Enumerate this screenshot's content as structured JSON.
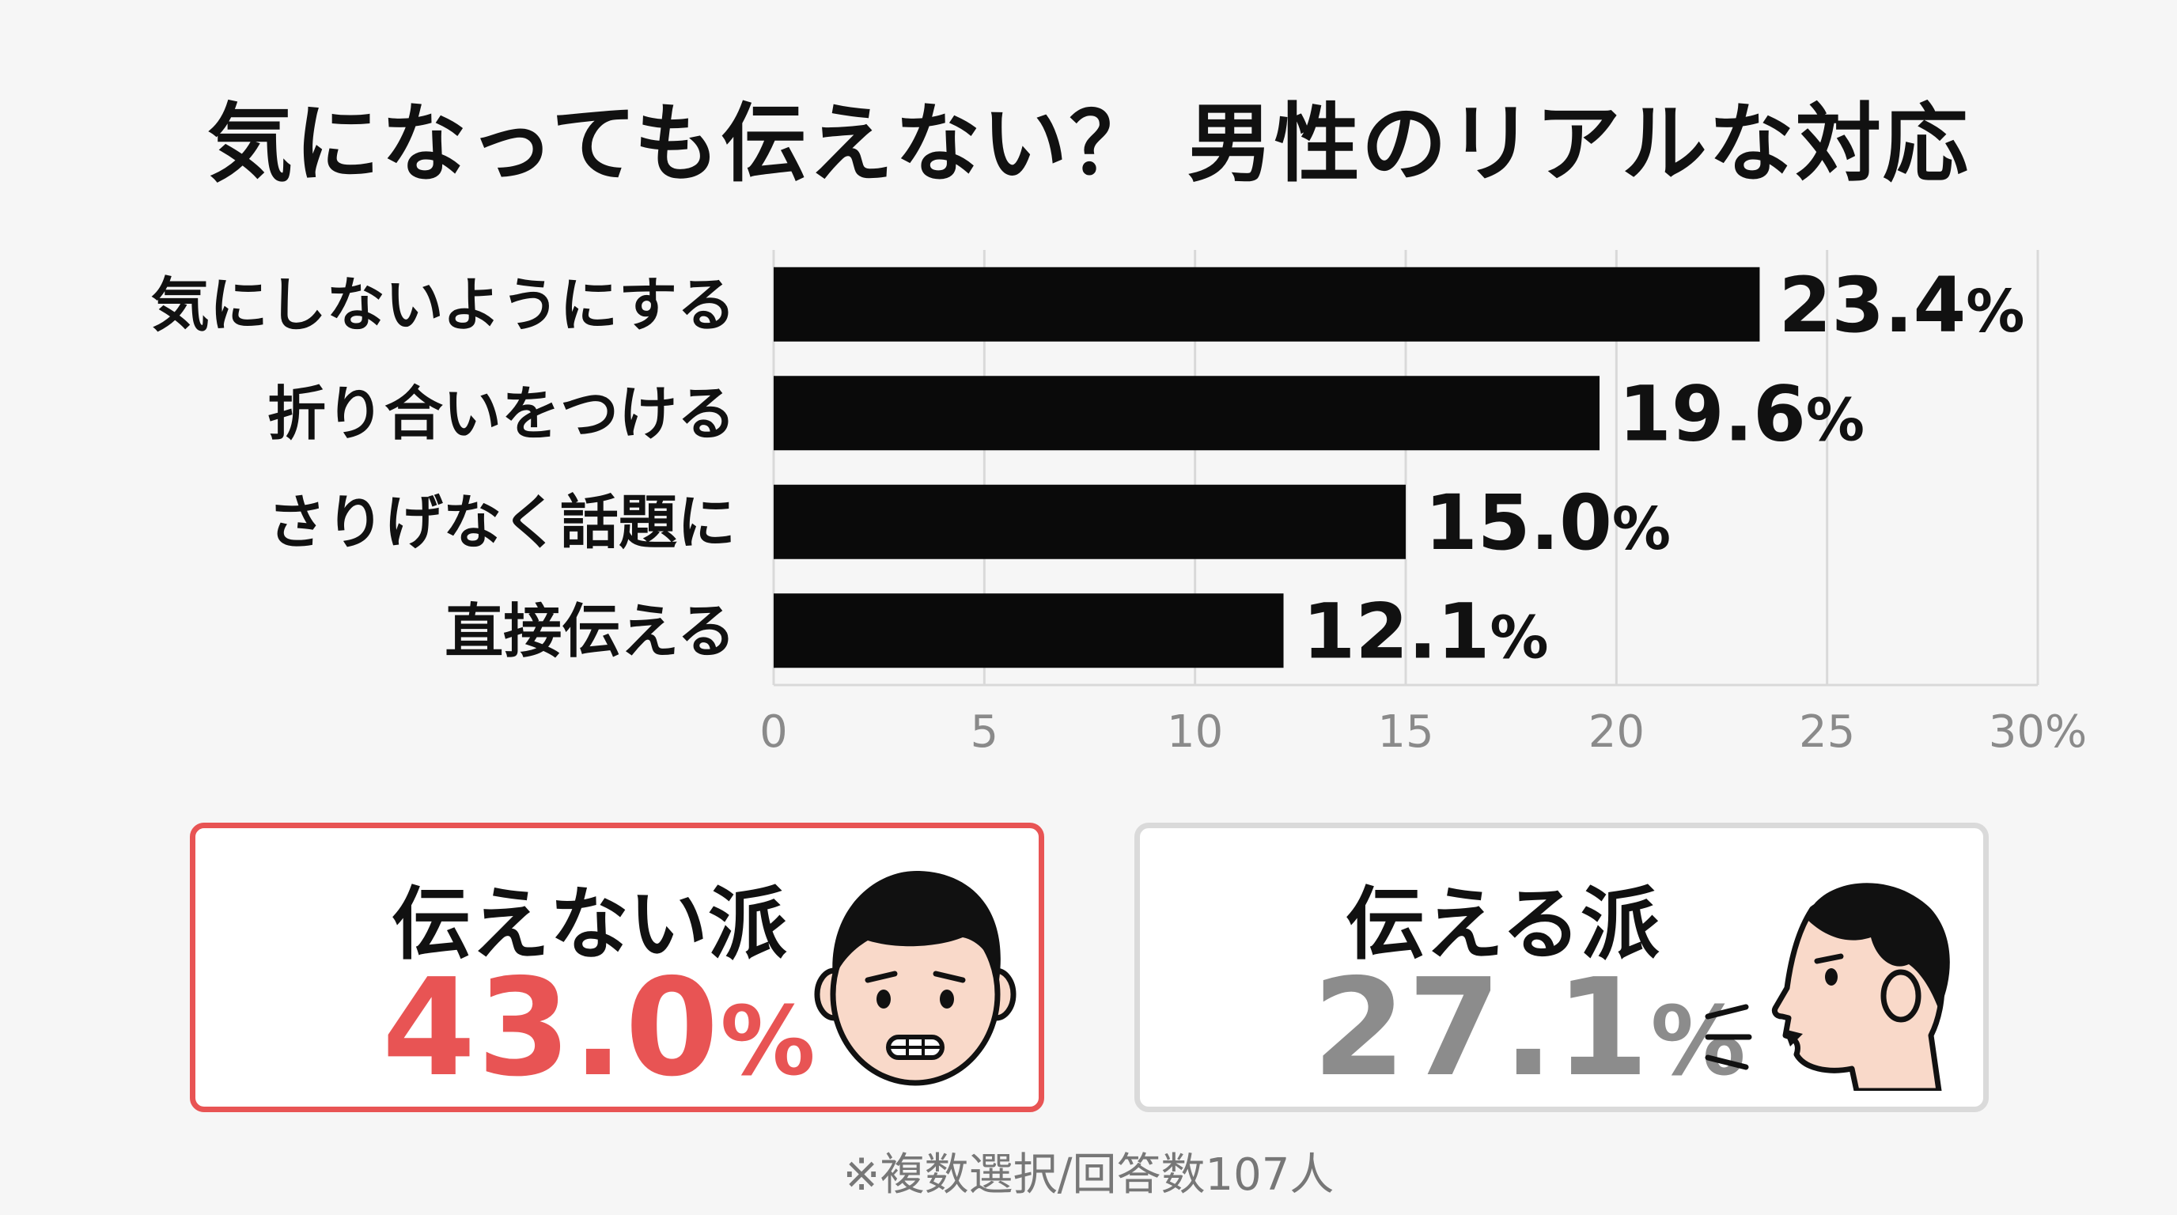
{
  "title": "気になっても伝えない？ 男性のリアルな対応",
  "chart_data": {
    "type": "bar",
    "orientation": "horizontal",
    "categories": [
      "気にしないようにする",
      "折り合いをつける",
      "さりげなく話題に",
      "直接伝える"
    ],
    "values": [
      23.4,
      19.6,
      15.0,
      12.1
    ],
    "value_labels": [
      "23.4",
      "19.6",
      "15.0",
      "12.1"
    ],
    "value_suffix": "%",
    "xlim": [
      0,
      30
    ],
    "xticks": [
      "0",
      "5",
      "10",
      "15",
      "20",
      "25",
      "30%"
    ],
    "grid": true,
    "bar_color": "#0a0a0a",
    "grid_color": "#d9d9d9",
    "tick_color": "#8a8a8a"
  },
  "summary": {
    "not_tell": {
      "label": "伝えない派",
      "value": "43.0",
      "unit": "%",
      "color": "#e85454",
      "icon": "frowning-man-face-icon"
    },
    "tell": {
      "label": "伝える派",
      "value": "27.1",
      "unit": "%",
      "color": "#8c8c8c",
      "icon": "speaking-man-profile-icon"
    }
  },
  "footnote": "※複数選択/回答数107人"
}
